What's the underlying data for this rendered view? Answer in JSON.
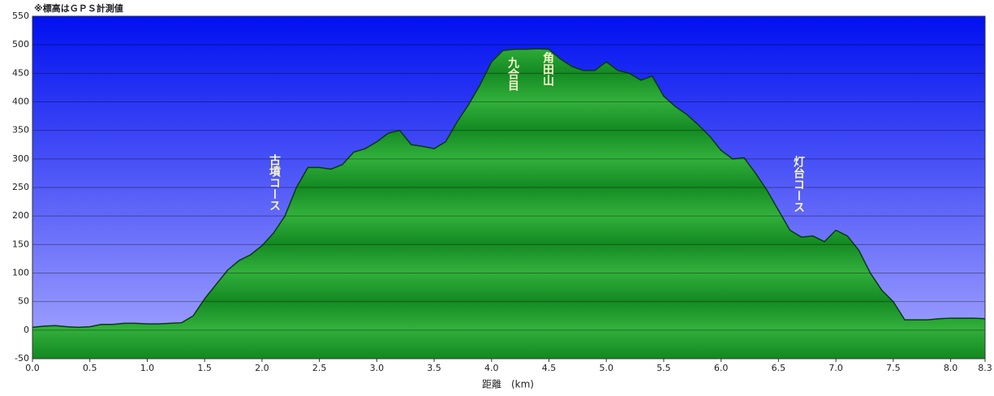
{
  "chart_data": {
    "type": "area",
    "note": "※標高はＧＰＳ計測値",
    "xlabel": "距離　(km)",
    "annotations": [
      "古墳コース",
      "九合目",
      "角田山",
      "灯台コース"
    ],
    "x": [
      0.0,
      0.1,
      0.2,
      0.3,
      0.4,
      0.5,
      0.6,
      0.7,
      0.8,
      0.9,
      1.0,
      1.1,
      1.2,
      1.3,
      1.4,
      1.5,
      1.6,
      1.7,
      1.8,
      1.9,
      2.0,
      2.1,
      2.2,
      2.3,
      2.4,
      2.5,
      2.6,
      2.7,
      2.8,
      2.9,
      3.0,
      3.1,
      3.2,
      3.3,
      3.4,
      3.5,
      3.6,
      3.7,
      3.8,
      3.9,
      4.0,
      4.1,
      4.2,
      4.3,
      4.4,
      4.5,
      4.6,
      4.7,
      4.8,
      4.9,
      5.0,
      5.1,
      5.2,
      5.3,
      5.4,
      5.5,
      5.6,
      5.7,
      5.8,
      5.9,
      6.0,
      6.1,
      6.2,
      6.3,
      6.4,
      6.5,
      6.6,
      6.7,
      6.8,
      6.9,
      7.0,
      7.1,
      7.2,
      7.3,
      7.4,
      7.5,
      7.6,
      7.7,
      7.8,
      7.9,
      8.0,
      8.1,
      8.2,
      8.3
    ],
    "values": [
      5,
      7,
      8,
      6,
      5,
      6,
      10,
      10,
      12,
      12,
      11,
      11,
      12,
      13,
      25,
      55,
      80,
      105,
      122,
      132,
      148,
      170,
      200,
      250,
      285,
      285,
      282,
      290,
      312,
      318,
      330,
      345,
      350,
      325,
      322,
      318,
      330,
      365,
      395,
      430,
      470,
      490,
      492,
      492,
      493,
      492,
      475,
      462,
      455,
      455,
      470,
      455,
      450,
      438,
      445,
      410,
      392,
      378,
      360,
      340,
      315,
      300,
      302,
      275,
      245,
      210,
      175,
      163,
      165,
      155,
      175,
      165,
      140,
      100,
      70,
      50,
      18,
      18,
      18,
      20,
      21,
      21,
      21,
      20
    ],
    "color": "#1f9a2c",
    "xlim": [
      0,
      8.3
    ],
    "ylim": [
      -50,
      550
    ],
    "xticks": [
      {
        "value": 0,
        "label": "0.0"
      },
      0.5,
      {
        "value": 1,
        "label": "1.0"
      },
      1.5,
      {
        "value": 2,
        "label": "2.0"
      },
      2.5,
      {
        "value": 3,
        "label": "3.0"
      },
      3.5,
      {
        "value": 4,
        "label": "4.0"
      },
      4.5,
      {
        "value": 5,
        "label": "5.0"
      },
      5.5,
      {
        "value": 6,
        "label": "6.0"
      },
      6.5,
      {
        "value": 7,
        "label": "7.0"
      },
      7.5,
      {
        "value": 8,
        "label": "8.0"
      },
      8.3
    ],
    "yticks": [
      -50,
      0,
      50,
      100,
      150,
      200,
      250,
      300,
      350,
      400,
      450,
      500,
      550
    ],
    "grid": true
  }
}
